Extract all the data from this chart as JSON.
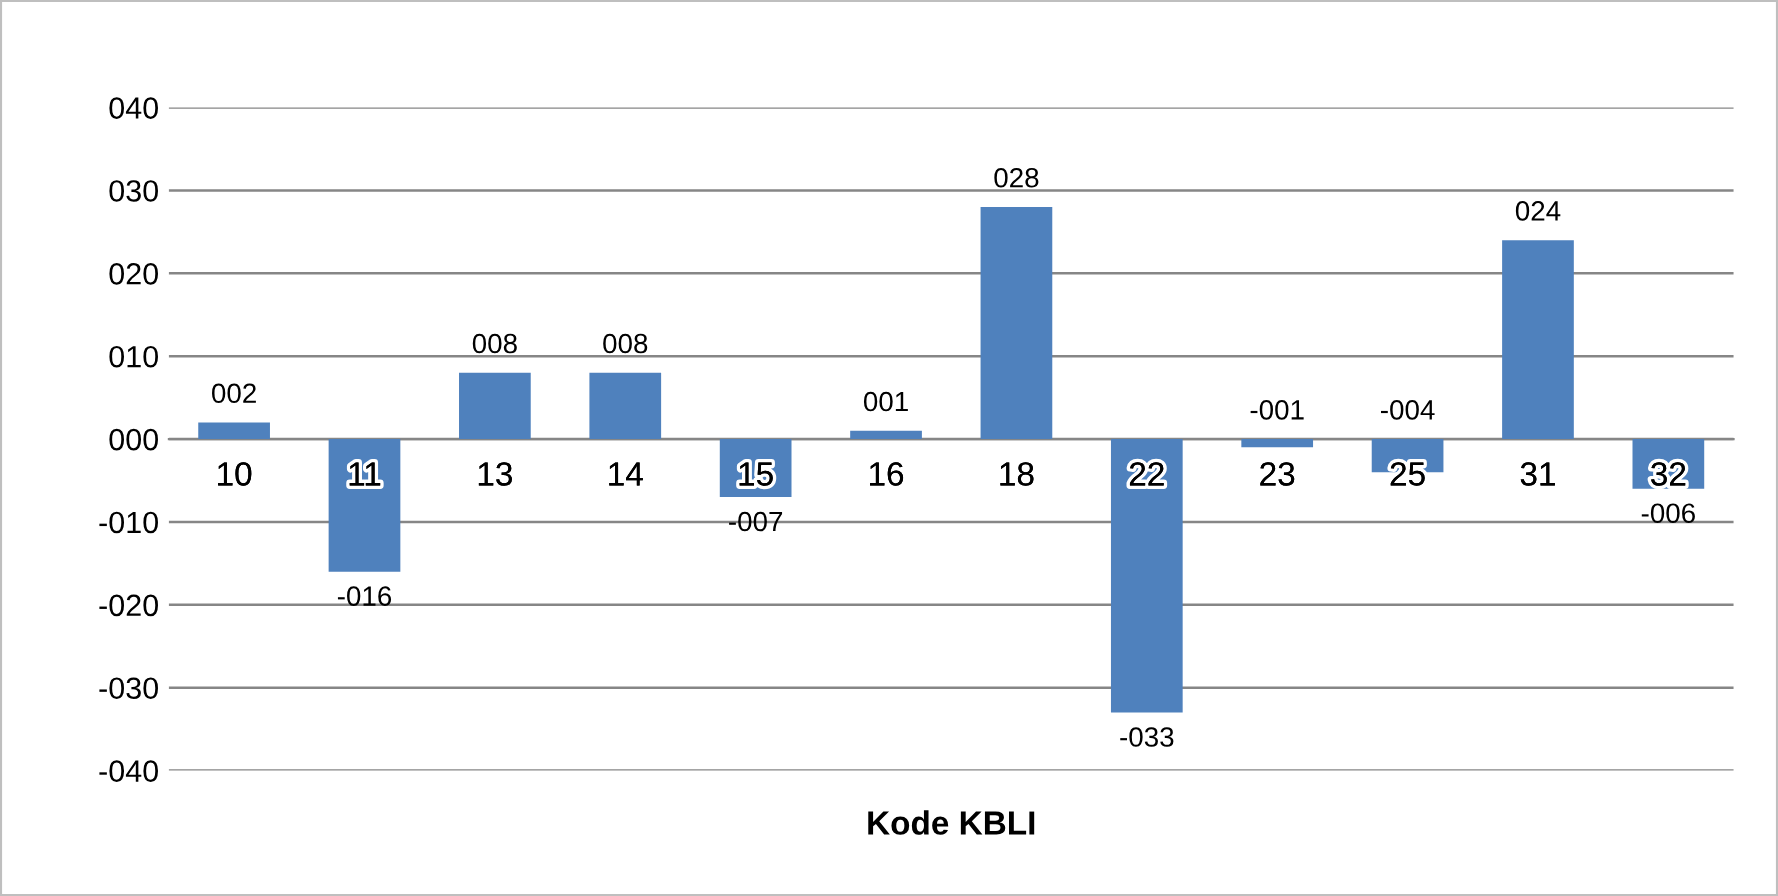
{
  "chart_data": {
    "type": "bar",
    "xlabel": "Kode KBLI",
    "categories": [
      "10",
      "11",
      "13",
      "14",
      "15",
      "16",
      "18",
      "22",
      "23",
      "25",
      "31",
      "32"
    ],
    "values": [
      2,
      -16,
      8,
      8,
      -7,
      1,
      28,
      -33,
      -1,
      -4,
      24,
      -6
    ],
    "value_labels": [
      "002",
      "-016",
      "008",
      "008",
      "-007",
      "001",
      "028",
      "-033",
      "-001",
      "-004",
      "024",
      "-006"
    ],
    "color": "#4f81bd",
    "ylim": [
      -40,
      40
    ],
    "yticks": [
      {
        "value": -40,
        "label": "-040"
      },
      {
        "value": -30,
        "label": "-030"
      },
      {
        "value": -20,
        "label": "-020"
      },
      {
        "value": -10,
        "label": "-010"
      },
      {
        "value": 0,
        "label": "000"
      },
      {
        "value": 10,
        "label": "010"
      },
      {
        "value": 20,
        "label": "020"
      },
      {
        "value": 30,
        "label": "030"
      },
      {
        "value": 40,
        "label": "040"
      }
    ],
    "grid": "y",
    "legend": false
  }
}
